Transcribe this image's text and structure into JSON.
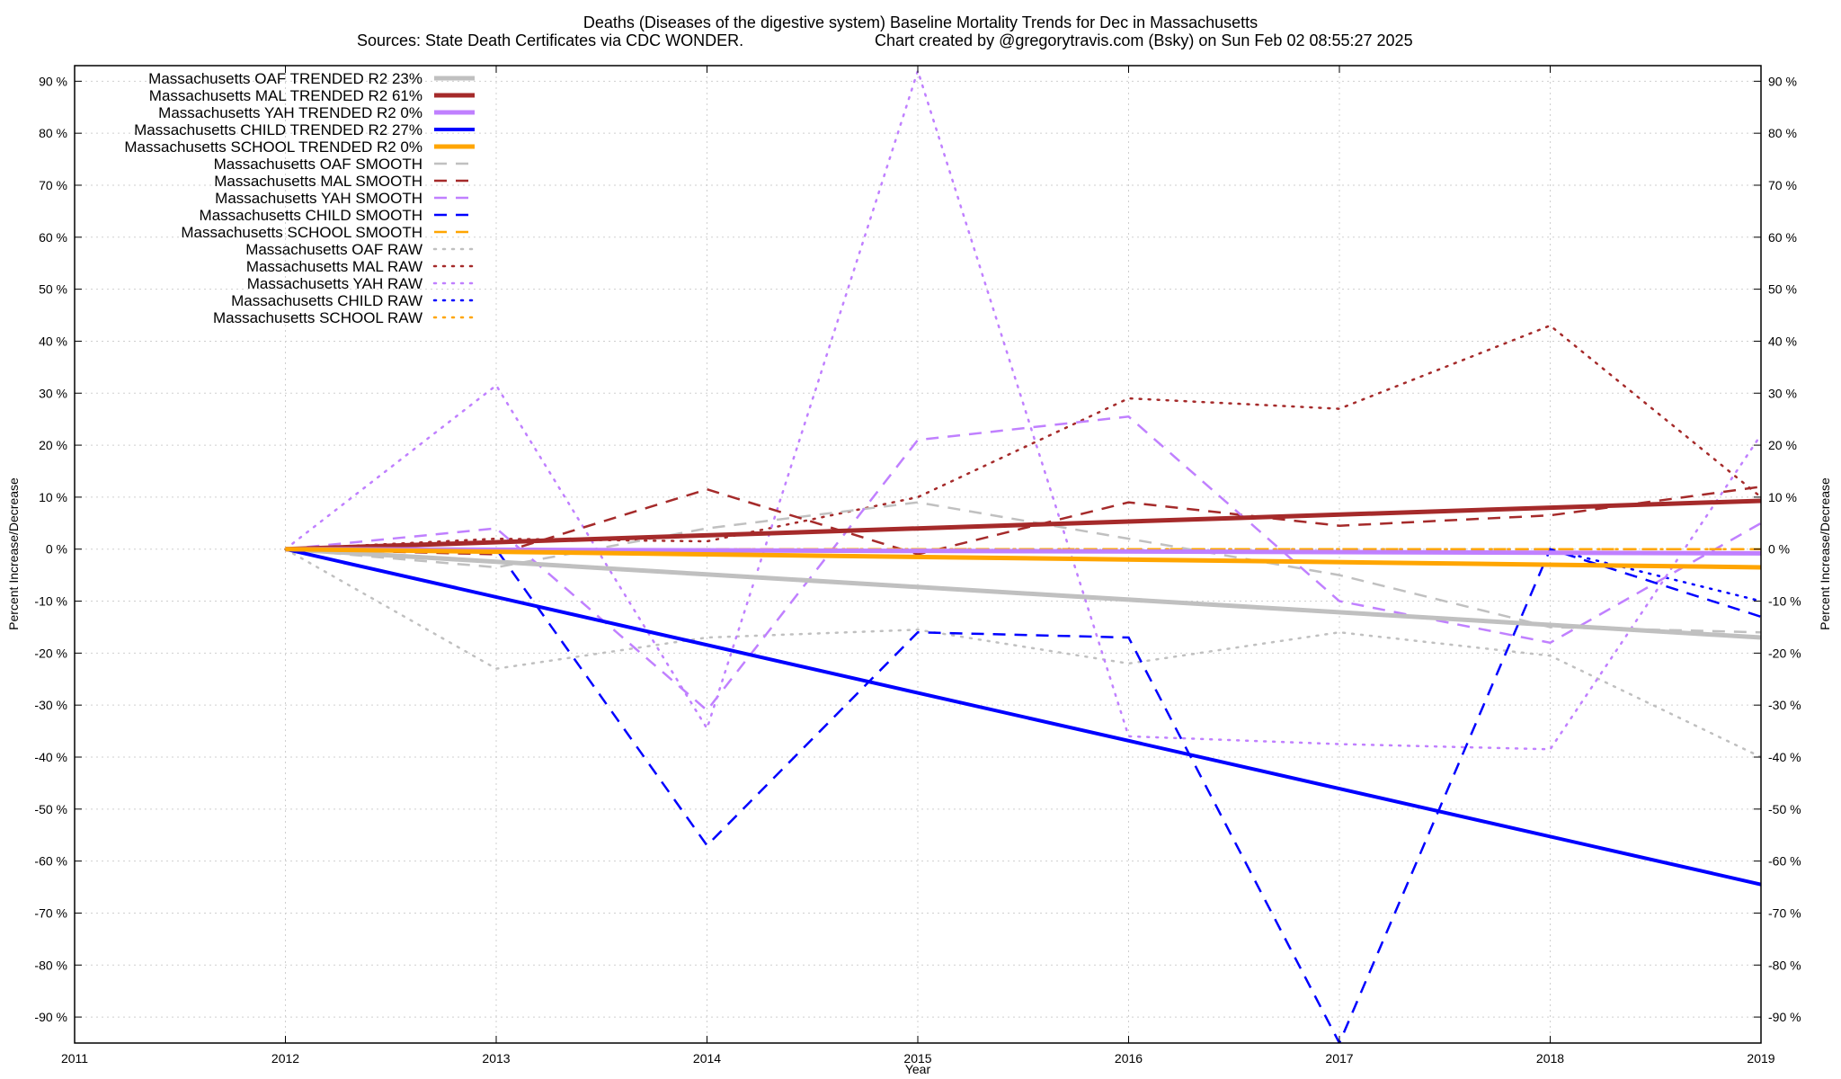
{
  "chart_data": {
    "type": "line",
    "title": "Deaths (Diseases of the digestive system)  Baseline Mortality Trends for Dec in Massachusetts",
    "subtitle_left": "Sources: State Death Certificates via CDC WONDER.",
    "subtitle_right": "Chart created by @gregorytravis.com (Bsky) on Sun Feb 02 08:55:27 2025",
    "xlabel": "Year",
    "ylabel": "Percent Increase/Decrease",
    "ylabel_right": "Percent Increase/Decrease",
    "xlim": [
      2011,
      2019
    ],
    "ylim": [
      -95,
      93
    ],
    "x_ticks": [
      2011,
      2012,
      2013,
      2014,
      2015,
      2016,
      2017,
      2018,
      2019
    ],
    "y_ticks": [
      90,
      80,
      70,
      60,
      50,
      40,
      30,
      20,
      10,
      0,
      -10,
      -20,
      -30,
      -40,
      -50,
      -60,
      -70,
      -80,
      -90
    ],
    "y_tick_suffix": " %",
    "grid": true,
    "legend_position": "top-left",
    "series": [
      {
        "name": "Massachusetts OAF TRENDED R2  23%",
        "color": "#c0c0c0",
        "style": "solid",
        "width": 5,
        "x": [
          2012,
          2019
        ],
        "y": [
          0,
          -17
        ]
      },
      {
        "name": "Massachusetts MAL TRENDED R2  61%",
        "color": "#a52a2a",
        "style": "solid",
        "width": 5,
        "x": [
          2012,
          2019
        ],
        "y": [
          0,
          9.3
        ]
      },
      {
        "name": "Massachusetts YAH TRENDED R2   0%",
        "color": "#c080ff",
        "style": "solid",
        "width": 5,
        "x": [
          2012,
          2019
        ],
        "y": [
          0,
          -0.8
        ]
      },
      {
        "name": "Massachusetts CHILD TRENDED R2  27%",
        "color": "#0000ff",
        "style": "solid",
        "width": 4,
        "x": [
          2012,
          2019
        ],
        "y": [
          0,
          -64.5
        ]
      },
      {
        "name": "Massachusetts SCHOOL TRENDED R2   0%",
        "color": "#ffa500",
        "style": "solid",
        "width": 5,
        "x": [
          2012,
          2019
        ],
        "y": [
          0,
          -3.5
        ]
      },
      {
        "name": "Massachusetts OAF SMOOTH",
        "color": "#c0c0c0",
        "style": "dashed",
        "width": 2.5,
        "x": [
          2012,
          2013,
          2014,
          2015,
          2016,
          2017,
          2018,
          2019
        ],
        "y": [
          0,
          -3.5,
          4,
          9,
          2,
          -5,
          -15,
          -16
        ]
      },
      {
        "name": "Massachusetts MAL SMOOTH",
        "color": "#a52a2a",
        "style": "dashed",
        "width": 2.5,
        "x": [
          2012,
          2013,
          2014,
          2015,
          2016,
          2017,
          2018,
          2019
        ],
        "y": [
          0,
          -1,
          11.5,
          -1,
          9,
          4.5,
          6.5,
          12
        ]
      },
      {
        "name": "Massachusetts YAH SMOOTH",
        "color": "#c080ff",
        "style": "dashed",
        "width": 2.5,
        "x": [
          2012,
          2013,
          2014,
          2015,
          2016,
          2017,
          2018,
          2019
        ],
        "y": [
          0,
          4,
          -31,
          21,
          25.5,
          -10,
          -18,
          5
        ]
      },
      {
        "name": "Massachusetts CHILD SMOOTH",
        "color": "#0000ff",
        "style": "dashed",
        "width": 2.5,
        "x": [
          2012,
          2013,
          2014,
          2015,
          2016,
          2017,
          2018,
          2019
        ],
        "y": [
          0,
          0,
          -57,
          -16,
          -17,
          -95,
          0,
          -13
        ]
      },
      {
        "name": "Massachusetts SCHOOL SMOOTH",
        "color": "#ffa500",
        "style": "dashed",
        "width": 2.5,
        "x": [
          2012,
          2013,
          2014,
          2015,
          2016,
          2017,
          2018,
          2019
        ],
        "y": [
          0,
          0,
          0,
          0,
          0,
          0,
          0,
          0
        ]
      },
      {
        "name": "Massachusetts OAF RAW",
        "color": "#c0c0c0",
        "style": "dotted",
        "width": 2.5,
        "x": [
          2012,
          2013,
          2014,
          2015,
          2016,
          2017,
          2018,
          2019
        ],
        "y": [
          0,
          -23,
          -17,
          -15.5,
          -22,
          -16,
          -20.5,
          -40
        ]
      },
      {
        "name": "Massachusetts MAL RAW",
        "color": "#a52a2a",
        "style": "dotted",
        "width": 2.5,
        "x": [
          2012,
          2013,
          2014,
          2015,
          2016,
          2017,
          2018,
          2019
        ],
        "y": [
          0,
          2,
          1.5,
          10,
          29,
          27,
          43,
          10
        ]
      },
      {
        "name": "Massachusetts YAH RAW",
        "color": "#c080ff",
        "style": "dotted",
        "width": 2.5,
        "x": [
          2012,
          2013,
          2014,
          2015,
          2016,
          2017,
          2018,
          2019
        ],
        "y": [
          0,
          31.5,
          -34.5,
          92,
          -36,
          -37.5,
          -38.5,
          22
        ]
      },
      {
        "name": "Massachusetts CHILD RAW",
        "color": "#0000ff",
        "style": "dotted",
        "width": 2.5,
        "x": [
          2012,
          2013,
          2014,
          2015,
          2016,
          2017,
          2018,
          2019
        ],
        "y": [
          0,
          0,
          0,
          0,
          0,
          0,
          0,
          -10
        ]
      },
      {
        "name": "Massachusetts SCHOOL RAW",
        "color": "#ffa500",
        "style": "dotted",
        "width": 2.5,
        "x": [
          2012,
          2013,
          2014,
          2015,
          2016,
          2017,
          2018,
          2019
        ],
        "y": [
          0,
          0,
          0,
          0,
          0,
          0,
          0,
          0
        ]
      }
    ]
  }
}
